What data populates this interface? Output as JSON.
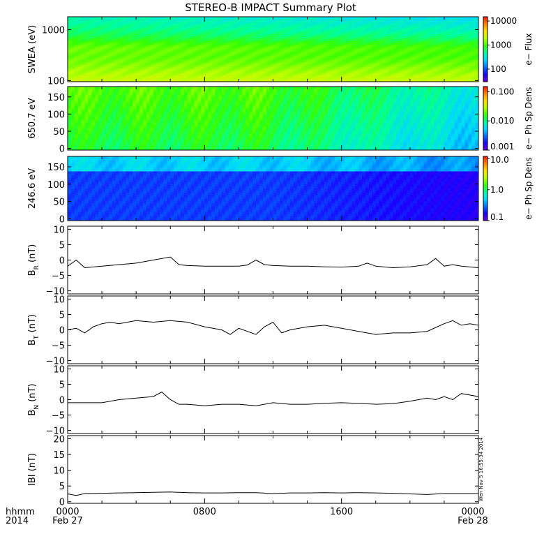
{
  "title": "STEREO-B IMPACT Summary Plot",
  "footer": {
    "time_label": "hhmm",
    "year": "2014",
    "ticks": [
      "0000",
      "0800",
      "1600",
      "0000"
    ],
    "dates": [
      "Feb 27",
      "Feb 28"
    ]
  },
  "timestamp": "Wen Nov 5 16:55:34 2014",
  "colorbar_colors": [
    "#6a00d5",
    "#1a00ff",
    "#0070ff",
    "#00d8ff",
    "#00ff9a",
    "#36ff00",
    "#b8ff00",
    "#ffe000",
    "#ff8000",
    "#ff1400"
  ],
  "chart_data": [
    {
      "type": "heatmap",
      "ylabel": "SWEA (eV)",
      "yscale": "log",
      "ylim": [
        95,
        1800
      ],
      "yticks": [
        "1000",
        "100"
      ],
      "colorbar": {
        "label": "e− Flux",
        "scale": "log",
        "ticks": [
          "10000",
          "1000",
          "100"
        ],
        "range": [
          30,
          15000
        ]
      }
    },
    {
      "type": "heatmap",
      "ylabel": "650.7 eV",
      "ylim": [
        -5,
        180
      ],
      "yticks": [
        "150",
        "100",
        "50",
        "0"
      ],
      "colorbar": {
        "label": "e− Ph Sp Dens",
        "scale": "log",
        "ticks": [
          "0.100",
          "0.010",
          "0.001"
        ],
        "range": [
          0.001,
          0.15
        ]
      }
    },
    {
      "type": "heatmap",
      "ylabel": "246.6 eV",
      "ylim": [
        -5,
        180
      ],
      "yticks": [
        "150",
        "100",
        "50",
        "0"
      ],
      "colorbar": {
        "label": "e− Ph Sp Dens",
        "scale": "log",
        "ticks": [
          "10.0",
          "1.0",
          "0.1"
        ],
        "range": [
          0.1,
          12
        ]
      }
    },
    {
      "type": "line",
      "ylabel": [
        "B",
        "R",
        " (nT)"
      ],
      "ylim": [
        -11,
        11
      ],
      "yticks": [
        "10",
        "5",
        "0",
        "−5",
        "−10"
      ],
      "x_hours": [
        0,
        0.5,
        1,
        2,
        3,
        4,
        5,
        6,
        6.5,
        7,
        8,
        9,
        10,
        10.5,
        11,
        11.5,
        12,
        13,
        14,
        15,
        16,
        17,
        17.5,
        18,
        19,
        20,
        21,
        21.5,
        22,
        22.5,
        23,
        24
      ],
      "values": [
        -2,
        0,
        -2.5,
        -2,
        -1.5,
        -1,
        0,
        1,
        -1.5,
        -1.8,
        -2,
        -2,
        -2,
        -1.6,
        0,
        -1.5,
        -1.8,
        -2,
        -2,
        -2.2,
        -2.3,
        -2,
        -1,
        -2,
        -2.5,
        -2.2,
        -1.5,
        0.5,
        -2,
        -1.5,
        -2,
        -2.5
      ]
    },
    {
      "type": "line",
      "ylabel": [
        "B",
        "T",
        " (nT)"
      ],
      "ylim": [
        -11,
        11
      ],
      "yticks": [
        "10",
        "5",
        "0",
        "−5",
        "−10"
      ],
      "x_hours": [
        0,
        0.5,
        1,
        1.5,
        2,
        2.5,
        3,
        4,
        5,
        6,
        7,
        8,
        9,
        9.5,
        10,
        11,
        11.5,
        12,
        12.5,
        13,
        14,
        15,
        16,
        17,
        18,
        19,
        20,
        21,
        22,
        22.5,
        23,
        23.5,
        24
      ],
      "values": [
        0,
        0.5,
        -1,
        1,
        2,
        2.5,
        2,
        3,
        2.5,
        3,
        2.5,
        1,
        0,
        -1.5,
        0.5,
        -1.5,
        1,
        2.5,
        -1,
        0,
        1,
        1.5,
        0.5,
        -0.5,
        -1.5,
        -1,
        -1,
        -0.5,
        2,
        3,
        1.5,
        2,
        1.5
      ]
    },
    {
      "type": "line",
      "ylabel": [
        "B",
        "N",
        " (nT)"
      ],
      "ylim": [
        -11,
        11
      ],
      "yticks": [
        "10",
        "5",
        "0",
        "−5",
        "−10"
      ],
      "x_hours": [
        0,
        1,
        2,
        3,
        4,
        5,
        5.5,
        6,
        6.5,
        7,
        8,
        9,
        10,
        11,
        12,
        13,
        14,
        15,
        16,
        17,
        18,
        19,
        20,
        21,
        21.5,
        22,
        22.5,
        23,
        24
      ],
      "values": [
        -1,
        -1,
        -1,
        0,
        0.5,
        1,
        2.5,
        0,
        -1.5,
        -1.5,
        -2,
        -1.5,
        -1.5,
        -2,
        -1,
        -1.5,
        -1.5,
        -1.2,
        -1,
        -1.2,
        -1.5,
        -1.3,
        -0.5,
        0.5,
        0,
        1,
        0,
        2,
        1
      ]
    },
    {
      "type": "line",
      "ylabel": [
        "IBI (nT)"
      ],
      "ylim": [
        -0.5,
        21
      ],
      "yticks": [
        "20",
        "15",
        "10",
        "5",
        "0"
      ],
      "x_hours": [
        0,
        0.5,
        1,
        2,
        3,
        4,
        5,
        6,
        7,
        8,
        9,
        10,
        11,
        12,
        13,
        14,
        15,
        16,
        17,
        18,
        19,
        20,
        21,
        22,
        23,
        24
      ],
      "values": [
        2.5,
        2,
        2.6,
        2.7,
        2.8,
        2.9,
        3,
        3.1,
        2.9,
        2.8,
        2.8,
        2.9,
        2.9,
        2.6,
        2.8,
        2.8,
        2.9,
        2.8,
        2.9,
        2.8,
        2.7,
        2.5,
        2.3,
        2.6,
        2.6,
        2.6
      ]
    }
  ]
}
